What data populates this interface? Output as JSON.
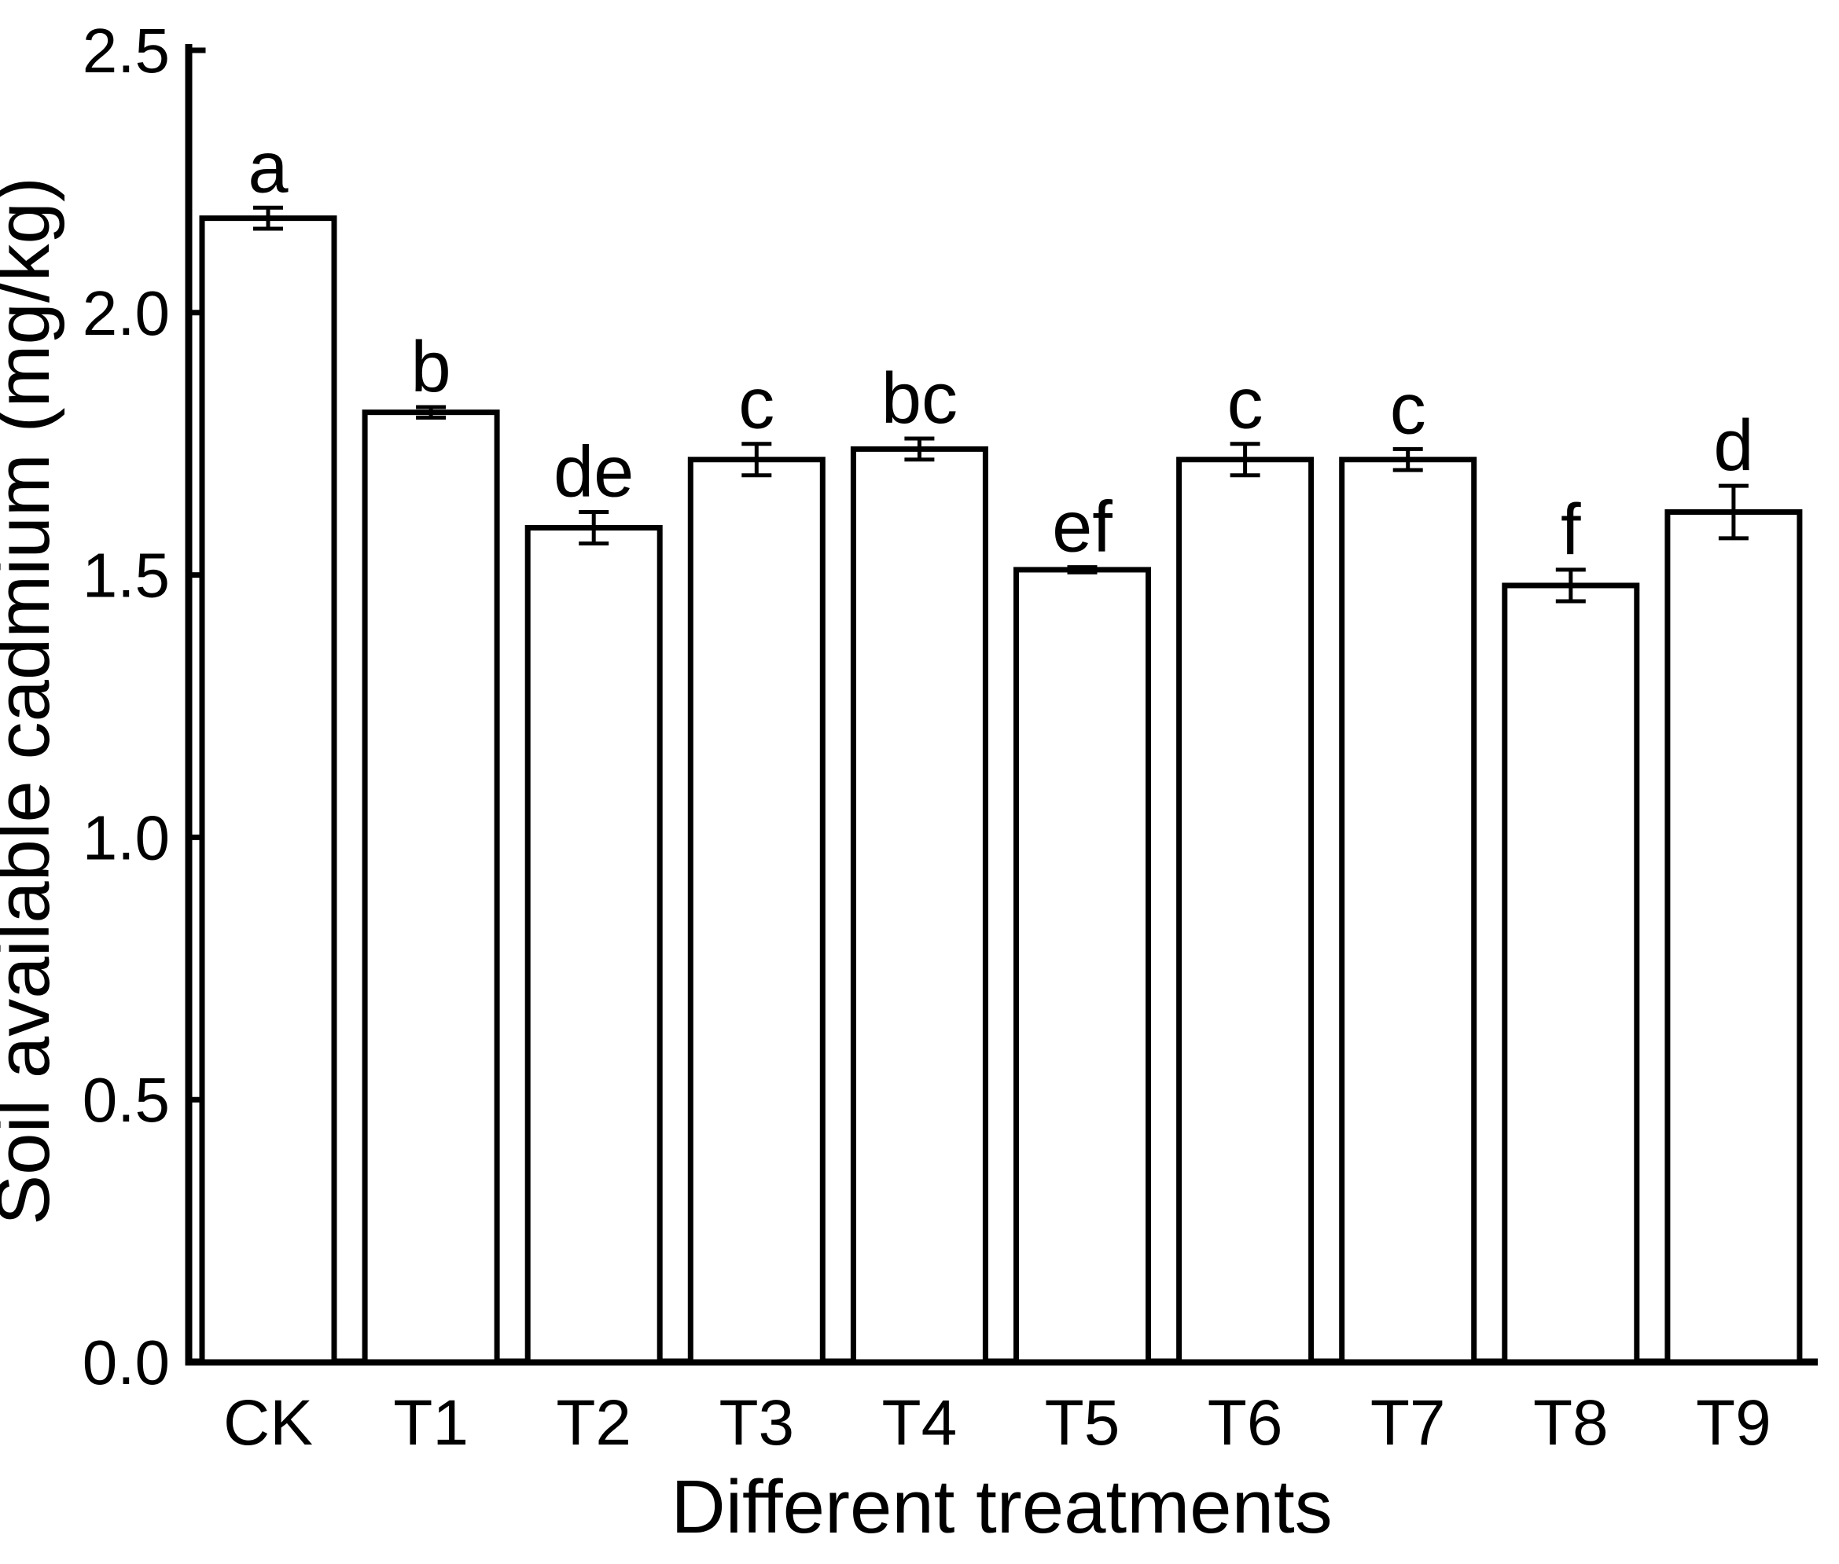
{
  "chart_data": {
    "type": "bar",
    "title": "",
    "xlabel": "Different treatments",
    "ylabel": "Soil available cadmium (mg/kg)",
    "categories": [
      "CK",
      "T1",
      "T2",
      "T3",
      "T4",
      "T5",
      "T6",
      "T7",
      "T8",
      "T9"
    ],
    "values": [
      2.18,
      1.81,
      1.59,
      1.72,
      1.74,
      1.51,
      1.72,
      1.72,
      1.48,
      1.62
    ],
    "errors": [
      0.02,
      0.01,
      0.03,
      0.03,
      0.02,
      0.005,
      0.03,
      0.02,
      0.03,
      0.05
    ],
    "sig_letters": [
      "a",
      "b",
      "de",
      "c",
      "bc",
      "ef",
      "c",
      "c",
      "f",
      "d"
    ],
    "ylim": [
      0.0,
      2.5
    ],
    "yticks": [
      0.0,
      0.5,
      1.0,
      1.5,
      2.0,
      2.5
    ],
    "ytick_labels": [
      "0.0",
      "0.5",
      "1.0",
      "1.5",
      "2.0",
      "2.5"
    ],
    "grid": false,
    "legend": null,
    "bar_fill": "#ffffff",
    "stroke_color": "#000000",
    "background": "#ffffff"
  }
}
